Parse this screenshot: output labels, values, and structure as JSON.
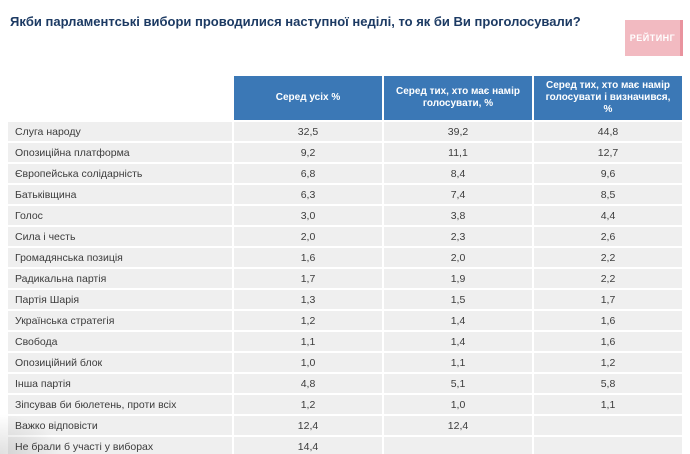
{
  "title": "Якби парламентські вибори проводилися наступної неділі, то як би Ви проголосували?",
  "logo": {
    "text": "РЕЙТИНГ"
  },
  "colors": {
    "header_blue": "#3b78b6",
    "row_gray": "#efefef",
    "title_navy": "#1c3a63",
    "logo_pink": "#f2bac1"
  },
  "table": {
    "headers": [
      "Серед усіх %",
      "Серед тих, хто має намір голосувати, %",
      "Серед тих, хто має намір голосувати і визначився, %"
    ],
    "rows": [
      {
        "label": "Слуга народу",
        "values": [
          "32,5",
          "39,2",
          "44,8"
        ]
      },
      {
        "label": "Опозиційна платформа",
        "values": [
          "9,2",
          "11,1",
          "12,7"
        ]
      },
      {
        "label": "Європейська солідарність",
        "values": [
          "6,8",
          "8,4",
          "9,6"
        ]
      },
      {
        "label": "Батьківщина",
        "values": [
          "6,3",
          "7,4",
          "8,5"
        ]
      },
      {
        "label": "Голос",
        "values": [
          "3,0",
          "3,8",
          "4,4"
        ]
      },
      {
        "label": "Сила і честь",
        "values": [
          "2,0",
          "2,3",
          "2,6"
        ]
      },
      {
        "label": "Громадянська позиція",
        "values": [
          "1,6",
          "2,0",
          "2,2"
        ]
      },
      {
        "label": "Радикальна партія",
        "values": [
          "1,7",
          "1,9",
          "2,2"
        ]
      },
      {
        "label": "Партія Шарія",
        "values": [
          "1,3",
          "1,5",
          "1,7"
        ]
      },
      {
        "label": "Українська стратегія",
        "values": [
          "1,2",
          "1,4",
          "1,6"
        ]
      },
      {
        "label": "Свобода",
        "values": [
          "1,1",
          "1,4",
          "1,6"
        ]
      },
      {
        "label": "Опозиційний блок",
        "values": [
          "1,0",
          "1,1",
          "1,2"
        ]
      },
      {
        "label": "Інша партія",
        "values": [
          "4,8",
          "5,1",
          "5,8"
        ]
      },
      {
        "label": "Зіпсував би бюлетень, проти всіх",
        "values": [
          "1,2",
          "1,0",
          "1,1"
        ]
      },
      {
        "label": "Важко відповісти",
        "values": [
          "12,4",
          "12,4",
          ""
        ]
      },
      {
        "label": "Не брали б участі у виборах",
        "values": [
          "14,4",
          "",
          ""
        ]
      }
    ]
  },
  "chart_data": {
    "type": "table",
    "title": "Якби парламентські вибори проводилися наступної неділі, то як би Ви проголосували?",
    "categories": [
      "Слуга народу",
      "Опозиційна платформа",
      "Європейська солідарність",
      "Батьківщина",
      "Голос",
      "Сила і честь",
      "Громадянська позиція",
      "Радикальна партія",
      "Партія Шарія",
      "Українська стратегія",
      "Свобода",
      "Опозиційний блок",
      "Інша партія",
      "Зіпсував би бюлетень, проти всіх",
      "Важко відповісти",
      "Не брали б участі у виборах"
    ],
    "series": [
      {
        "name": "Серед усіх %",
        "values": [
          32.5,
          9.2,
          6.8,
          6.3,
          3.0,
          2.0,
          1.6,
          1.7,
          1.3,
          1.2,
          1.1,
          1.0,
          4.8,
          1.2,
          12.4,
          14.4
        ]
      },
      {
        "name": "Серед тих, хто має намір голосувати, %",
        "values": [
          39.2,
          11.1,
          8.4,
          7.4,
          3.8,
          2.3,
          2.0,
          1.9,
          1.5,
          1.4,
          1.4,
          1.1,
          5.1,
          1.0,
          12.4,
          null
        ]
      },
      {
        "name": "Серед тих, хто має намір голосувати і визначився, %",
        "values": [
          44.8,
          12.7,
          9.6,
          8.5,
          4.4,
          2.6,
          2.2,
          2.2,
          1.7,
          1.6,
          1.6,
          1.2,
          5.8,
          1.1,
          null,
          null
        ]
      }
    ]
  }
}
